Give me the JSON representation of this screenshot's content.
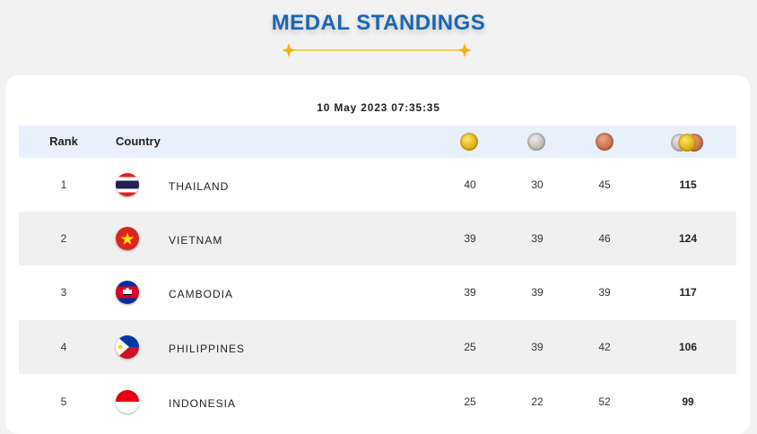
{
  "header": {
    "title": "MEDAL STANDINGS"
  },
  "timestamp": "10 May 2023  07:35:35",
  "table": {
    "columns": {
      "rank": "Rank",
      "country": "Country"
    },
    "medal_icons": [
      "gold-medal-icon",
      "silver-medal-icon",
      "bronze-medal-icon",
      "all-medals-icon"
    ],
    "rows": [
      {
        "rank": "1",
        "country": "THAILAND",
        "flag": "thailand-flag-icon",
        "gold": "40",
        "silver": "30",
        "bronze": "45",
        "total": "115"
      },
      {
        "rank": "2",
        "country": "VIETNAM",
        "flag": "vietnam-flag-icon",
        "gold": "39",
        "silver": "39",
        "bronze": "46",
        "total": "124"
      },
      {
        "rank": "3",
        "country": "CAMBODIA",
        "flag": "cambodia-flag-icon",
        "gold": "39",
        "silver": "39",
        "bronze": "39",
        "total": "117"
      },
      {
        "rank": "4",
        "country": "PHILIPPINES",
        "flag": "philippines-flag-icon",
        "gold": "25",
        "silver": "39",
        "bronze": "42",
        "total": "106"
      },
      {
        "rank": "5",
        "country": "INDONESIA",
        "flag": "indonesia-flag-icon",
        "gold": "25",
        "silver": "22",
        "bronze": "52",
        "total": "99"
      }
    ]
  },
  "colors": {
    "title": "#1a66b3",
    "header_row": "#e8f1fb",
    "alt_row": "#f0f0f0",
    "ornament": "#f0b400"
  }
}
